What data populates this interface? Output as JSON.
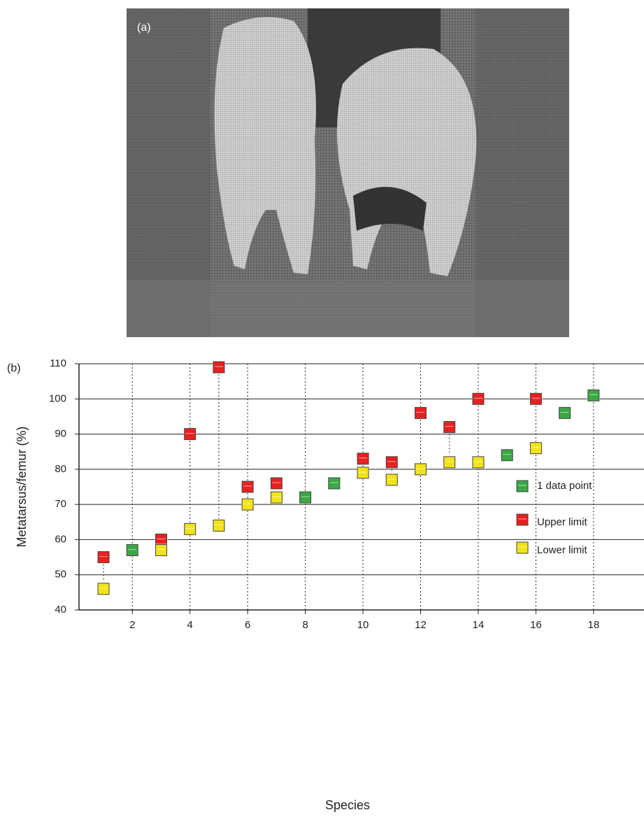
{
  "panel_a_label": "(a)",
  "panel_b_label": "(b)",
  "chart_data": {
    "type": "scatter",
    "xlabel": "Species",
    "ylabel": "Metatarsus/femur (%)",
    "xlim": [
      0.15,
      19.75
    ],
    "ylim": [
      40,
      110
    ],
    "xticks": [
      2,
      4,
      6,
      8,
      10,
      12,
      14,
      16,
      18
    ],
    "yticks": [
      40,
      50,
      60,
      70,
      80,
      90,
      100,
      110
    ],
    "grid": true,
    "legend": "lower right",
    "series": [
      {
        "name": "1 data point",
        "color": "#3aa843",
        "x": [
          2,
          8,
          9,
          15,
          17,
          18
        ],
        "values": [
          57,
          72,
          76,
          84,
          96,
          101
        ]
      },
      {
        "name": "Upper limit",
        "color": "#e8201f",
        "x": [
          1,
          3,
          4,
          5,
          6,
          7,
          10,
          11,
          12,
          13,
          14,
          16
        ],
        "values": [
          55,
          60,
          90,
          109,
          75,
          76,
          83,
          82,
          96,
          92,
          100,
          100
        ]
      },
      {
        "name": "Lower limit",
        "color": "#f2e318",
        "x": [
          1,
          3,
          4,
          5,
          6,
          7,
          10,
          11,
          12,
          13,
          14,
          16
        ],
        "values": [
          46,
          57,
          63,
          64,
          70,
          72,
          79,
          77,
          80,
          82,
          82,
          86
        ]
      }
    ]
  }
}
